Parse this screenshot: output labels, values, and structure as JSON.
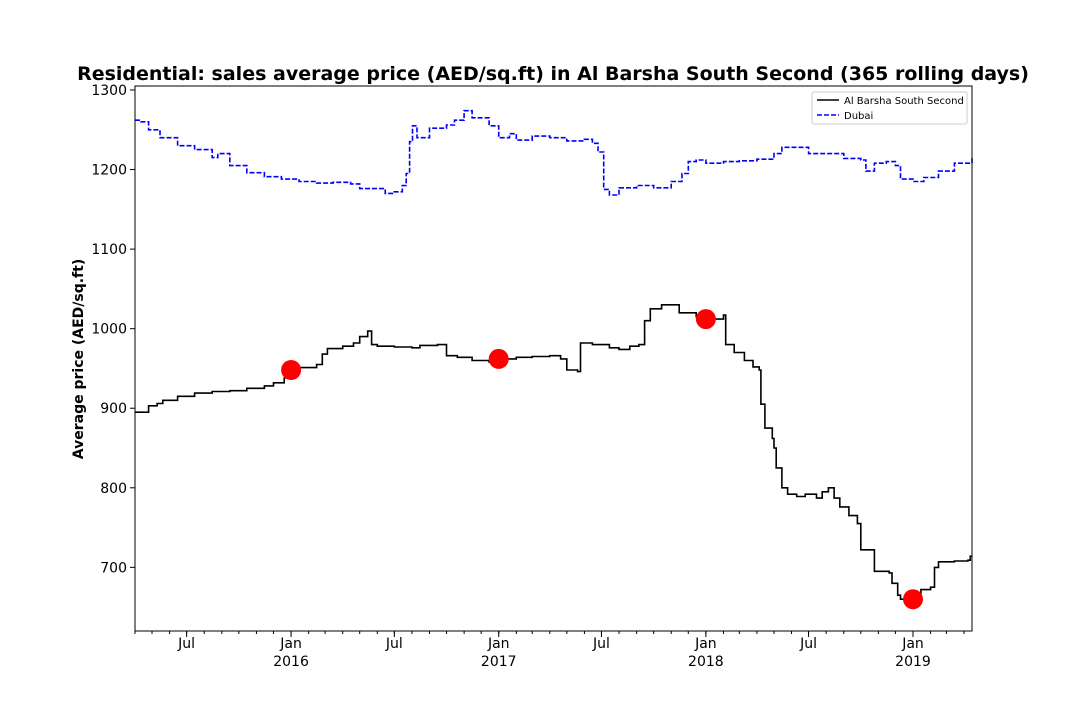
{
  "chart_data": {
    "type": "line",
    "title": "Residential: sales average price (AED/sq.ft) in Al Barsha South Second (365 rolling days)",
    "xlabel": "",
    "ylabel": "Average price (AED/sq.ft)",
    "xlim": [
      "2015-04-01",
      "2019-04-15"
    ],
    "ylim": [
      620,
      1305
    ],
    "y_ticks": [
      700,
      800,
      900,
      1000,
      1100,
      1200,
      1300
    ],
    "x_ticks": [
      {
        "date": "2015-07-01",
        "label": "Jul",
        "year": ""
      },
      {
        "date": "2016-01-01",
        "label": "Jan",
        "year": "2016"
      },
      {
        "date": "2016-07-01",
        "label": "Jul",
        "year": ""
      },
      {
        "date": "2017-01-01",
        "label": "Jan",
        "year": "2017"
      },
      {
        "date": "2017-07-01",
        "label": "Jul",
        "year": ""
      },
      {
        "date": "2018-01-01",
        "label": "Jan",
        "year": "2018"
      },
      {
        "date": "2018-07-01",
        "label": "Jul",
        "year": ""
      },
      {
        "date": "2019-01-01",
        "label": "Jan",
        "year": "2019"
      }
    ],
    "grid": false,
    "legend": {
      "placement": "top-right",
      "entries": [
        {
          "name": "Al Barsha South Second",
          "color": "#000000",
          "style": "solid"
        },
        {
          "name": "Dubai",
          "color": "#0000ff",
          "style": "dashed"
        }
      ]
    },
    "series": [
      {
        "name": "Al Barsha South Second",
        "color": "#000000",
        "style": "solid",
        "points": [
          [
            "2015-04-01",
            895
          ],
          [
            "2015-04-20",
            895
          ],
          [
            "2015-04-25",
            903
          ],
          [
            "2015-05-10",
            906
          ],
          [
            "2015-05-20",
            910
          ],
          [
            "2015-06-15",
            915
          ],
          [
            "2015-07-15",
            919
          ],
          [
            "2015-08-15",
            921
          ],
          [
            "2015-09-15",
            922
          ],
          [
            "2015-10-15",
            925
          ],
          [
            "2015-11-15",
            928
          ],
          [
            "2015-12-01",
            932
          ],
          [
            "2015-12-20",
            938
          ],
          [
            "2016-01-01",
            948
          ],
          [
            "2016-01-15",
            951
          ],
          [
            "2016-02-15",
            955
          ],
          [
            "2016-02-25",
            968
          ],
          [
            "2016-03-05",
            975
          ],
          [
            "2016-04-01",
            978
          ],
          [
            "2016-04-20",
            982
          ],
          [
            "2016-05-01",
            990
          ],
          [
            "2016-05-15",
            997
          ],
          [
            "2016-05-22",
            980
          ],
          [
            "2016-06-01",
            978
          ],
          [
            "2016-07-01",
            977
          ],
          [
            "2016-08-01",
            976
          ],
          [
            "2016-08-15",
            979
          ],
          [
            "2016-09-15",
            980
          ],
          [
            "2016-10-01",
            966
          ],
          [
            "2016-10-20",
            964
          ],
          [
            "2016-11-15",
            960
          ],
          [
            "2016-12-15",
            958
          ],
          [
            "2017-01-01",
            962
          ],
          [
            "2017-02-01",
            964
          ],
          [
            "2017-03-01",
            965
          ],
          [
            "2017-04-01",
            966
          ],
          [
            "2017-04-20",
            962
          ],
          [
            "2017-05-01",
            948
          ],
          [
            "2017-05-20",
            946
          ],
          [
            "2017-05-25",
            982
          ],
          [
            "2017-06-15",
            980
          ],
          [
            "2017-07-15",
            976
          ],
          [
            "2017-08-01",
            974
          ],
          [
            "2017-08-20",
            978
          ],
          [
            "2017-09-05",
            980
          ],
          [
            "2017-09-15",
            1010
          ],
          [
            "2017-09-25",
            1025
          ],
          [
            "2017-10-15",
            1030
          ],
          [
            "2017-11-05",
            1030
          ],
          [
            "2017-11-15",
            1020
          ],
          [
            "2017-12-15",
            1015
          ],
          [
            "2018-01-01",
            1012
          ],
          [
            "2018-01-20",
            1012
          ],
          [
            "2018-02-01",
            1017
          ],
          [
            "2018-02-05",
            980
          ],
          [
            "2018-02-20",
            970
          ],
          [
            "2018-03-10",
            960
          ],
          [
            "2018-03-25",
            952
          ],
          [
            "2018-04-05",
            948
          ],
          [
            "2018-04-08",
            905
          ],
          [
            "2018-04-15",
            875
          ],
          [
            "2018-04-28",
            862
          ],
          [
            "2018-05-01",
            850
          ],
          [
            "2018-05-05",
            825
          ],
          [
            "2018-05-15",
            800
          ],
          [
            "2018-05-25",
            792
          ],
          [
            "2018-06-10",
            789
          ],
          [
            "2018-06-25",
            792
          ],
          [
            "2018-07-15",
            787
          ],
          [
            "2018-07-25",
            795
          ],
          [
            "2018-08-05",
            800
          ],
          [
            "2018-08-15",
            787
          ],
          [
            "2018-08-25",
            776
          ],
          [
            "2018-09-10",
            765
          ],
          [
            "2018-09-25",
            755
          ],
          [
            "2018-10-01",
            722
          ],
          [
            "2018-10-20",
            722
          ],
          [
            "2018-10-25",
            695
          ],
          [
            "2018-11-20",
            693
          ],
          [
            "2018-11-25",
            680
          ],
          [
            "2018-12-05",
            665
          ],
          [
            "2018-12-10",
            660
          ],
          [
            "2018-12-20",
            657
          ],
          [
            "2019-01-01",
            660
          ],
          [
            "2019-01-15",
            672
          ],
          [
            "2019-02-01",
            675
          ],
          [
            "2019-02-08",
            700
          ],
          [
            "2019-02-15",
            707
          ],
          [
            "2019-03-15",
            708
          ],
          [
            "2019-04-08",
            709
          ],
          [
            "2019-04-12",
            714
          ],
          [
            "2019-04-15",
            714
          ]
        ]
      },
      {
        "name": "Dubai",
        "color": "#0000ff",
        "style": "dashed",
        "points": [
          [
            "2015-04-01",
            1262
          ],
          [
            "2015-04-10",
            1260
          ],
          [
            "2015-04-25",
            1250
          ],
          [
            "2015-05-15",
            1240
          ],
          [
            "2015-06-15",
            1230
          ],
          [
            "2015-07-15",
            1225
          ],
          [
            "2015-08-15",
            1215
          ],
          [
            "2015-08-25",
            1220
          ],
          [
            "2015-09-15",
            1205
          ],
          [
            "2015-10-15",
            1196
          ],
          [
            "2015-11-15",
            1191
          ],
          [
            "2015-12-15",
            1188
          ],
          [
            "2016-01-15",
            1185
          ],
          [
            "2016-02-15",
            1183
          ],
          [
            "2016-03-15",
            1184
          ],
          [
            "2016-04-15",
            1182
          ],
          [
            "2016-05-01",
            1176
          ],
          [
            "2016-06-01",
            1176
          ],
          [
            "2016-06-15",
            1170
          ],
          [
            "2016-07-01",
            1172
          ],
          [
            "2016-07-15",
            1180
          ],
          [
            "2016-07-22",
            1195
          ],
          [
            "2016-07-28",
            1235
          ],
          [
            "2016-08-02",
            1255
          ],
          [
            "2016-08-10",
            1240
          ],
          [
            "2016-09-01",
            1252
          ],
          [
            "2016-10-01",
            1256
          ],
          [
            "2016-10-15",
            1262
          ],
          [
            "2016-11-01",
            1274
          ],
          [
            "2016-11-15",
            1265
          ],
          [
            "2016-12-15",
            1255
          ],
          [
            "2017-01-01",
            1240
          ],
          [
            "2017-01-20",
            1245
          ],
          [
            "2017-02-01",
            1237
          ],
          [
            "2017-03-01",
            1242
          ],
          [
            "2017-04-01",
            1240
          ],
          [
            "2017-05-01",
            1236
          ],
          [
            "2017-06-01",
            1238
          ],
          [
            "2017-06-15",
            1233
          ],
          [
            "2017-06-25",
            1222
          ],
          [
            "2017-07-05",
            1175
          ],
          [
            "2017-07-15",
            1168
          ],
          [
            "2017-08-01",
            1177
          ],
          [
            "2017-09-01",
            1180
          ],
          [
            "2017-10-01",
            1177
          ],
          [
            "2017-11-01",
            1185
          ],
          [
            "2017-11-20",
            1195
          ],
          [
            "2017-12-01",
            1210
          ],
          [
            "2017-12-15",
            1212
          ],
          [
            "2018-01-01",
            1208
          ],
          [
            "2018-02-01",
            1210
          ],
          [
            "2018-03-01",
            1211
          ],
          [
            "2018-04-01",
            1213
          ],
          [
            "2018-05-01",
            1220
          ],
          [
            "2018-05-15",
            1228
          ],
          [
            "2018-06-15",
            1228
          ],
          [
            "2018-07-01",
            1220
          ],
          [
            "2018-08-01",
            1220
          ],
          [
            "2018-09-01",
            1214
          ],
          [
            "2018-10-01",
            1212
          ],
          [
            "2018-10-10",
            1198
          ],
          [
            "2018-10-25",
            1208
          ],
          [
            "2018-11-15",
            1210
          ],
          [
            "2018-12-01",
            1205
          ],
          [
            "2018-12-10",
            1188
          ],
          [
            "2019-01-01",
            1185
          ],
          [
            "2019-01-20",
            1190
          ],
          [
            "2019-02-15",
            1198
          ],
          [
            "2019-03-15",
            1208
          ],
          [
            "2019-04-15",
            1215
          ]
        ]
      }
    ],
    "markers": [
      {
        "date": "2016-01-01",
        "value": 948,
        "color": "#ff0000"
      },
      {
        "date": "2017-01-01",
        "value": 962,
        "color": "#ff0000"
      },
      {
        "date": "2018-01-01",
        "value": 1012,
        "color": "#ff0000"
      },
      {
        "date": "2019-01-01",
        "value": 660,
        "color": "#ff0000"
      }
    ]
  }
}
